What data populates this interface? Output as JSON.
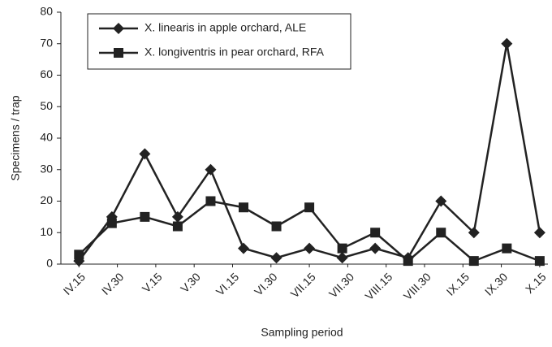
{
  "chart_data": {
    "type": "line",
    "x_label": "Sampling period",
    "y_label": "Specimens / trap",
    "x": [
      0,
      1,
      2,
      3,
      4,
      5,
      6,
      7,
      8,
      9,
      10,
      11,
      12,
      13,
      14
    ],
    "xlim": [
      -0.55,
      14.25
    ],
    "xticks": [
      {
        "value": 0,
        "label": "IV.15"
      },
      {
        "value": 1.1667,
        "label": "IV.30"
      },
      {
        "value": 2.3333,
        "label": "V.15"
      },
      {
        "value": 3.5,
        "label": "V.30"
      },
      {
        "value": 4.6667,
        "label": "VI.15"
      },
      {
        "value": 5.8333,
        "label": "VI.30"
      },
      {
        "value": 7,
        "label": "VII.15"
      },
      {
        "value": 8.1667,
        "label": "VII.30"
      },
      {
        "value": 9.3333,
        "label": "VIII.15"
      },
      {
        "value": 10.5,
        "label": "VIII.30"
      },
      {
        "value": 11.6667,
        "label": "IX.15"
      },
      {
        "value": 12.8333,
        "label": "IX.30"
      },
      {
        "value": 14,
        "label": "X.15"
      }
    ],
    "ylim": [
      0,
      80
    ],
    "yticks": [
      0,
      10,
      20,
      30,
      40,
      50,
      60,
      70,
      80
    ],
    "grid": false,
    "legend": "top-left",
    "series": [
      {
        "name": "X. linearis in apple orchard, ALE",
        "color": "#222222",
        "marker": "diamond",
        "values": [
          1,
          15,
          35,
          15,
          30,
          5,
          2,
          5,
          2,
          5,
          2,
          20,
          10,
          70,
          10
        ]
      },
      {
        "name": "X. longiventris in pear orchard, RFA",
        "color": "#222222",
        "marker": "square",
        "values": [
          3,
          13,
          15,
          12,
          20,
          18,
          12,
          18,
          5,
          10,
          1,
          10,
          1,
          5,
          1
        ]
      }
    ]
  }
}
